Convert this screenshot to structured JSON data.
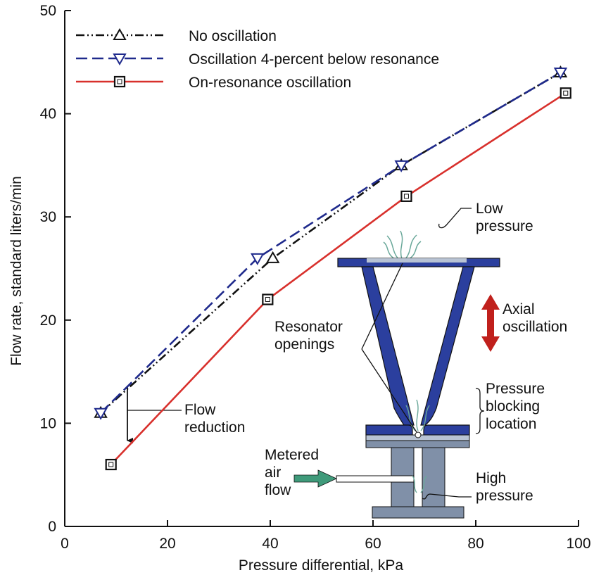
{
  "chart_data": {
    "type": "line",
    "title": "",
    "xlabel": "Pressure differential, kPa",
    "ylabel": "Flow rate, standard liters/min",
    "xlim": [
      0,
      100
    ],
    "ylim": [
      0,
      50
    ],
    "xticks": [
      "0",
      "20",
      "40",
      "60",
      "80",
      "100"
    ],
    "yticks": [
      "0",
      "10",
      "20",
      "30",
      "40",
      "50"
    ],
    "grid": false,
    "legend_position": "top-left",
    "series": [
      {
        "name": "No oscillation",
        "color": "#111111",
        "marker": "triangle-up",
        "line_style": "dash-dot-dot",
        "points": [
          [
            7,
            11
          ],
          [
            40.5,
            26
          ],
          [
            65.5,
            35
          ],
          [
            96.5,
            44
          ]
        ]
      },
      {
        "name": "Oscillation 4-percent below resonance",
        "color": "#1f2a8c",
        "marker": "triangle-down",
        "line_style": "dashed",
        "points": [
          [
            7,
            11
          ],
          [
            37.5,
            26
          ],
          [
            65.5,
            35
          ],
          [
            96.5,
            44
          ]
        ]
      },
      {
        "name": "On-resonance oscillation",
        "color": "#d8302c",
        "marker": "square",
        "line_style": "solid",
        "points": [
          [
            9,
            6
          ],
          [
            39.5,
            22
          ],
          [
            66.5,
            32
          ],
          [
            97.5,
            42
          ]
        ]
      }
    ],
    "annotations": {
      "flow_reduction": "Flow\nreduction",
      "low_pressure": "Low\npressure",
      "axial_oscillation": "Axial\noscillation",
      "resonator_openings": "Resonator\nopenings",
      "pressure_blocking": "Pressure\nblocking\nlocation",
      "metered_air_flow": "Metered\nair\nflow",
      "high_pressure": "High\npressure"
    }
  },
  "colors": {
    "resonator_fill": "#2b3f9e",
    "resonator_light": "#b8c3d4",
    "housing_fill": "#8090a8",
    "arrow_red": "#c0201c",
    "arrow_green": "#3f9a7a",
    "plume": "#6aa89a"
  }
}
